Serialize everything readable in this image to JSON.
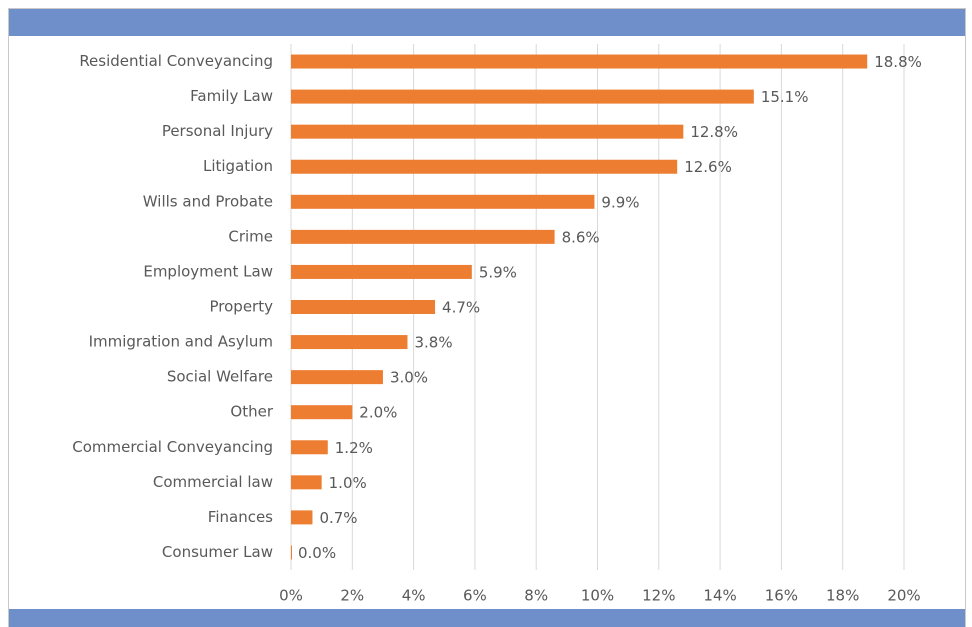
{
  "chart_data": {
    "type": "bar",
    "orientation": "horizontal",
    "categories": [
      "Residential Conveyancing",
      "Family Law",
      "Personal Injury",
      "Litigation",
      "Wills and Probate",
      "Crime",
      "Employment Law",
      "Property",
      "Immigration and Asylum",
      "Social Welfare",
      "Other",
      "Commercial Conveyancing",
      "Commercial law",
      "Finances",
      "Consumer Law"
    ],
    "values": [
      18.8,
      15.1,
      12.8,
      12.6,
      9.9,
      8.6,
      5.9,
      4.7,
      3.8,
      3.0,
      2.0,
      1.2,
      1.0,
      0.7,
      0.0
    ],
    "value_labels": [
      "18.8%",
      "15.1%",
      "12.8%",
      "12.6%",
      "9.9%",
      "8.6%",
      "5.9%",
      "4.7%",
      "3.8%",
      "3.0%",
      "2.0%",
      "1.2%",
      "1.0%",
      "0.7%",
      "0.0%"
    ],
    "color": "#ed7d31",
    "xlim": [
      0,
      20
    ],
    "xticks": [
      {
        "value": 0,
        "label": "0%"
      },
      {
        "value": 2,
        "label": "2%"
      },
      {
        "value": 4,
        "label": "4%"
      },
      {
        "value": 6,
        "label": "6%"
      },
      {
        "value": 8,
        "label": "8%"
      },
      {
        "value": 10,
        "label": "10%"
      },
      {
        "value": 12,
        "label": "12%"
      },
      {
        "value": 14,
        "label": "14%"
      },
      {
        "value": 16,
        "label": "16%"
      },
      {
        "value": 18,
        "label": "18%"
      },
      {
        "value": 20,
        "label": "20%"
      }
    ],
    "grid": true
  }
}
